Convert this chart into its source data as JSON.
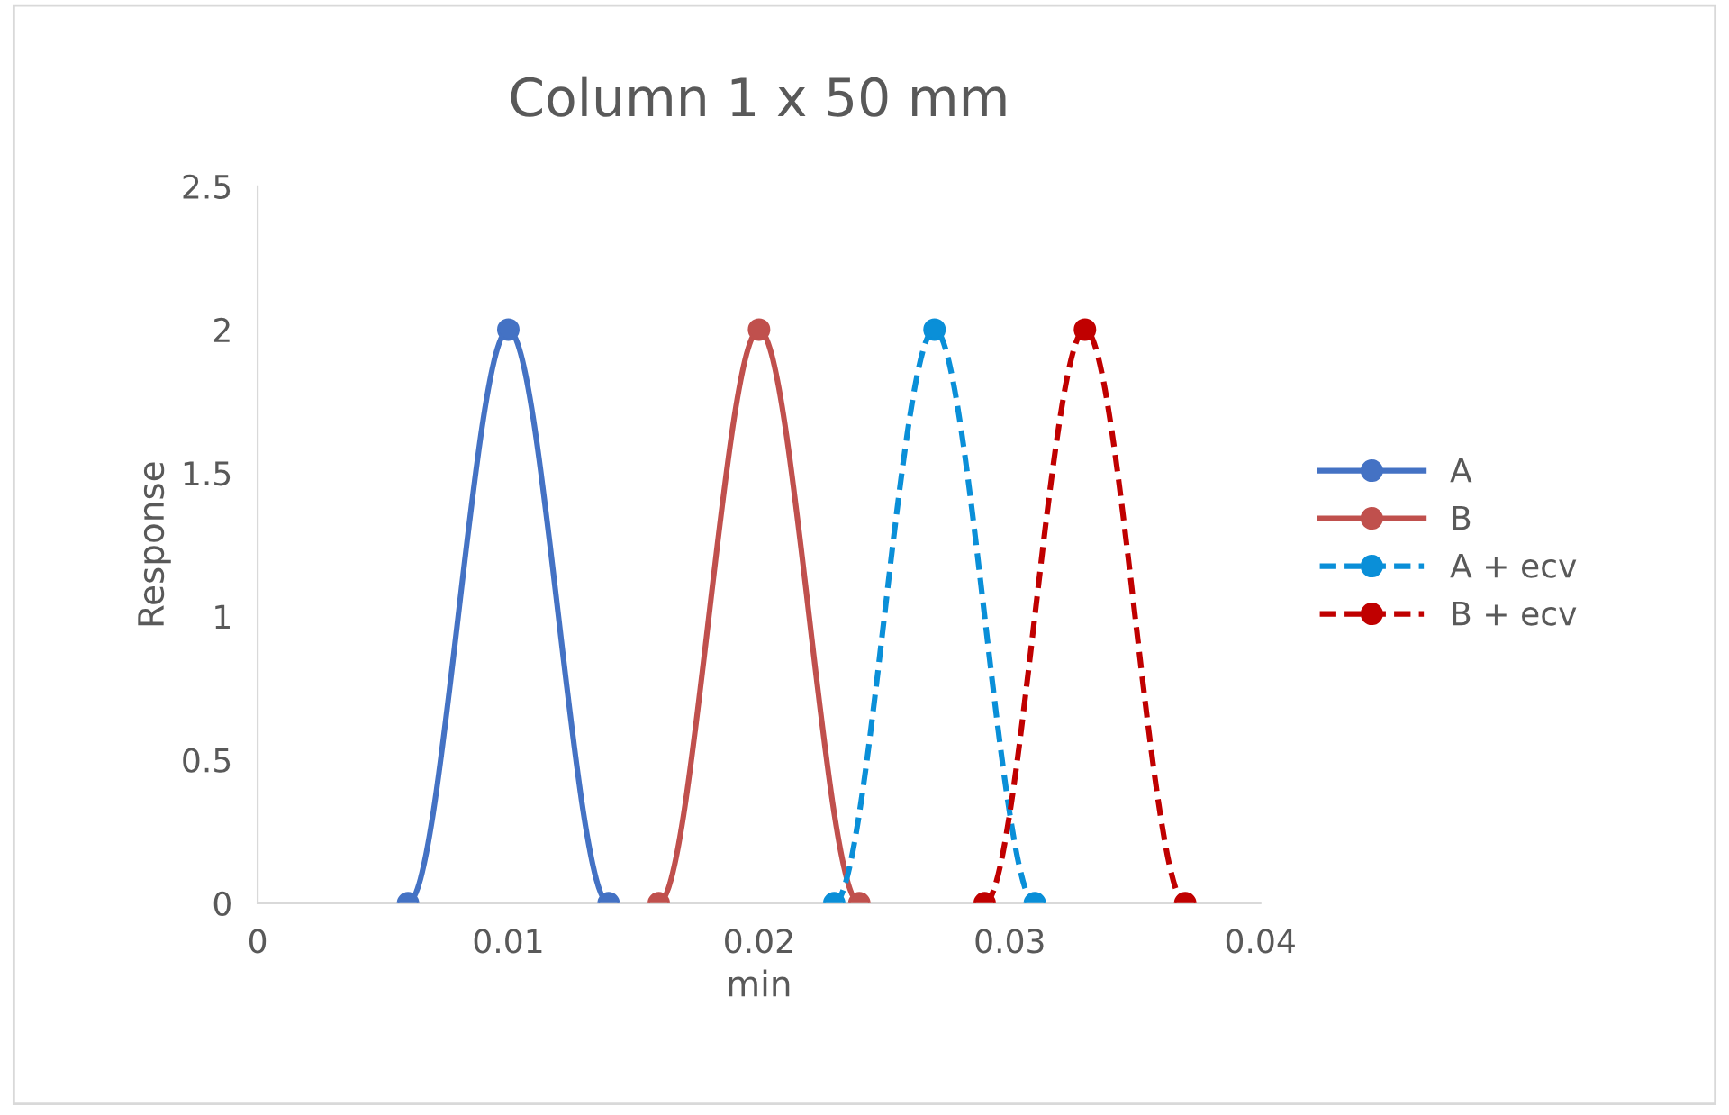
{
  "chart_data": {
    "type": "line",
    "title": "Column 1 x 50 mm",
    "xlabel": "min",
    "ylabel": "Response",
    "series": [
      {
        "name": "A",
        "color": "#4472c4",
        "x": [
          0.006,
          0.01,
          0.014
        ],
        "values": [
          0,
          2,
          0
        ],
        "line_style": "solid"
      },
      {
        "name": "B",
        "color": "#c0504d",
        "x": [
          0.016,
          0.02,
          0.024
        ],
        "values": [
          0,
          2,
          0
        ],
        "line_style": "solid"
      },
      {
        "name": "A + ecv",
        "color": "#0a8fd8",
        "x": [
          0.023,
          0.027,
          0.031
        ],
        "values": [
          0,
          2,
          0
        ],
        "line_style": "dashed"
      },
      {
        "name": "B + ecv",
        "color": "#c00000",
        "x": [
          0.029,
          0.033,
          0.037
        ],
        "values": [
          0,
          2,
          0
        ],
        "line_style": "dashed"
      }
    ],
    "xlim": [
      0,
      0.04
    ],
    "xticks": [
      0,
      0.01,
      0.02,
      0.03,
      0.04
    ],
    "ylim": [
      0,
      2.5
    ],
    "yticks": [
      0,
      0.5,
      1,
      1.5,
      2,
      2.5
    ],
    "marker": "circle",
    "legend": "right",
    "grid": false
  }
}
